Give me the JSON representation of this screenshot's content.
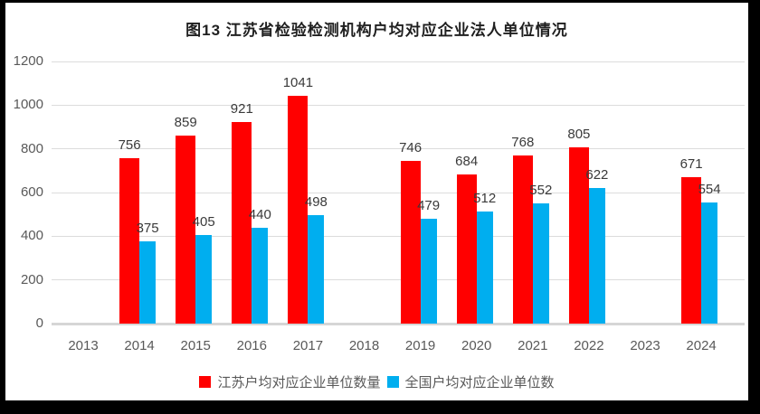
{
  "title": "图13 江苏省检验检测机构户均对应企业法人单位情况",
  "chart_data": {
    "type": "bar",
    "title": "图13 江苏省检验检测机构户均对应企业法人单位情况",
    "categories": [
      "2013",
      "2014",
      "2015",
      "2016",
      "2017",
      "2018",
      "2019",
      "2020",
      "2021",
      "2022",
      "2023",
      "2024"
    ],
    "series": [
      {
        "name": "江苏户均对应企业单位数量",
        "color": "#FF0000",
        "values": [
          null,
          756,
          859,
          921,
          1041,
          null,
          746,
          684,
          768,
          805,
          null,
          671
        ]
      },
      {
        "name": "全国户均对应企业单位数",
        "color": "#00AEEF",
        "values": [
          null,
          375,
          405,
          440,
          498,
          null,
          479,
          512,
          552,
          622,
          null,
          554
        ]
      }
    ],
    "ylim": [
      0,
      1200
    ],
    "ytick_interval": 200,
    "yticks": [
      "0",
      "200",
      "400",
      "600",
      "800",
      "1000",
      "1200"
    ],
    "grid": true,
    "legend_position": "bottom",
    "data_labels": true
  }
}
